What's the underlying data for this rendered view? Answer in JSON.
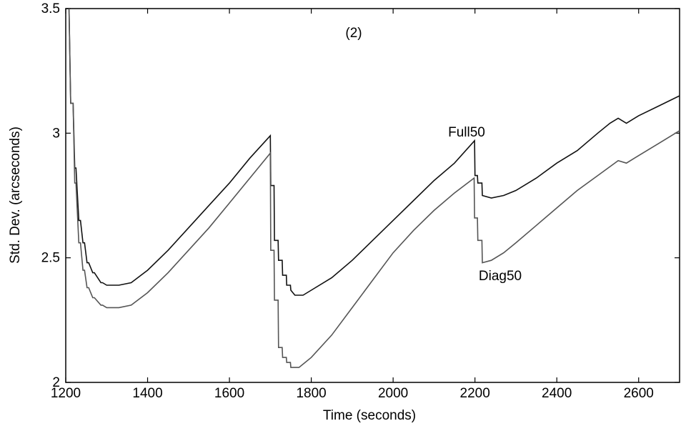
{
  "chart_data": {
    "type": "line",
    "title": "",
    "panel_label": "(2)",
    "xlabel": "Time (seconds)",
    "ylabel": "Std. Dev. (arcseconds)",
    "xlim": [
      1200,
      2700
    ],
    "ylim": [
      2,
      3.5
    ],
    "xticks": [
      1200,
      1400,
      1600,
      1800,
      2000,
      2200,
      2400,
      2600
    ],
    "xtick_labels": [
      "1200",
      "1400",
      "1600",
      "1800",
      "2000",
      "2200",
      "2400",
      "2600"
    ],
    "yticks": [
      2,
      2.5,
      3,
      3.5
    ],
    "ytick_labels": [
      "2",
      "2.5",
      "3",
      "3.5"
    ],
    "grid": false,
    "series": [
      {
        "name": "Full50",
        "color": "#111111",
        "x": [
          1202,
          1208,
          1212,
          1218,
          1222,
          1225,
          1232,
          1236,
          1242,
          1246,
          1252,
          1256,
          1266,
          1270,
          1286,
          1290,
          1300,
          1330,
          1360,
          1400,
          1450,
          1500,
          1550,
          1600,
          1650,
          1700,
          1701,
          1709,
          1710,
          1719,
          1720,
          1729,
          1730,
          1739,
          1740,
          1749,
          1750,
          1760,
          1780,
          1800,
          1850,
          1900,
          1950,
          2000,
          2050,
          2100,
          2150,
          2199,
          2200,
          2206,
          2207,
          2217,
          2218,
          2240,
          2270,
          2300,
          2350,
          2400,
          2450,
          2500,
          2530,
          2550,
          2570,
          2600,
          2650,
          2700
        ],
        "y": [
          3.5,
          3.5,
          3.12,
          3.12,
          2.86,
          2.86,
          2.65,
          2.65,
          2.56,
          2.56,
          2.48,
          2.48,
          2.44,
          2.44,
          2.4,
          2.4,
          2.39,
          2.39,
          2.4,
          2.45,
          2.53,
          2.62,
          2.71,
          2.8,
          2.9,
          2.99,
          2.79,
          2.79,
          2.57,
          2.57,
          2.49,
          2.49,
          2.43,
          2.43,
          2.39,
          2.39,
          2.37,
          2.35,
          2.35,
          2.37,
          2.42,
          2.49,
          2.57,
          2.65,
          2.73,
          2.81,
          2.88,
          2.97,
          2.83,
          2.83,
          2.8,
          2.8,
          2.75,
          2.74,
          2.75,
          2.77,
          2.82,
          2.88,
          2.93,
          3.0,
          3.04,
          3.06,
          3.04,
          3.07,
          3.11,
          3.15
        ]
      },
      {
        "name": "Diag50",
        "color": "#555555",
        "x": [
          1208,
          1212,
          1218,
          1222,
          1225,
          1232,
          1236,
          1242,
          1246,
          1252,
          1256,
          1266,
          1270,
          1286,
          1290,
          1300,
          1330,
          1360,
          1400,
          1450,
          1500,
          1550,
          1600,
          1650,
          1700,
          1701,
          1709,
          1710,
          1719,
          1720,
          1729,
          1730,
          1739,
          1740,
          1749,
          1750,
          1760,
          1770,
          1800,
          1850,
          1900,
          1950,
          2000,
          2050,
          2100,
          2150,
          2198,
          2199,
          2206,
          2207,
          2217,
          2218,
          2240,
          2270,
          2300,
          2350,
          2400,
          2450,
          2500,
          2550,
          2570,
          2600,
          2650,
          2700
        ],
        "y": [
          3.5,
          3.12,
          3.12,
          2.8,
          2.8,
          2.56,
          2.56,
          2.45,
          2.45,
          2.38,
          2.38,
          2.34,
          2.34,
          2.31,
          2.31,
          2.3,
          2.3,
          2.31,
          2.36,
          2.44,
          2.53,
          2.62,
          2.72,
          2.82,
          2.92,
          2.53,
          2.53,
          2.33,
          2.33,
          2.14,
          2.14,
          2.1,
          2.1,
          2.08,
          2.08,
          2.06,
          2.06,
          2.06,
          2.1,
          2.19,
          2.3,
          2.41,
          2.52,
          2.61,
          2.69,
          2.76,
          2.82,
          2.66,
          2.66,
          2.57,
          2.57,
          2.48,
          2.49,
          2.52,
          2.56,
          2.63,
          2.7,
          2.77,
          2.83,
          2.89,
          2.88,
          2.91,
          2.96,
          3.01
        ]
      }
    ]
  }
}
